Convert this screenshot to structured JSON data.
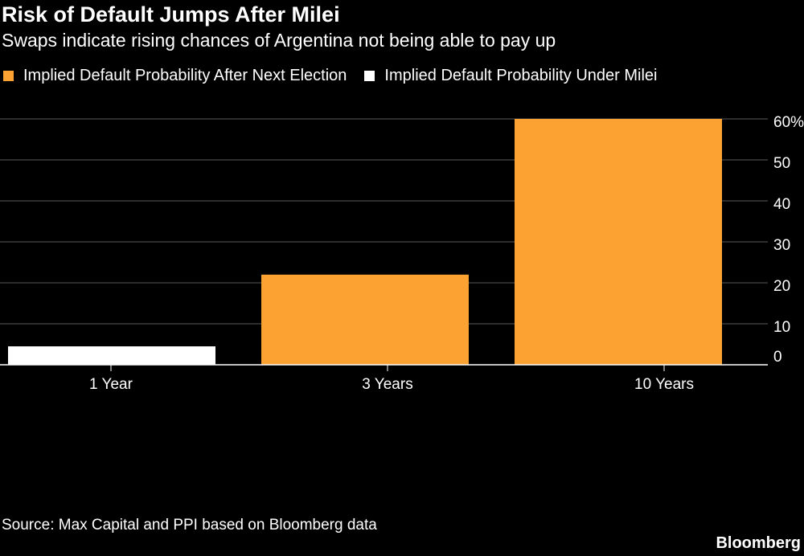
{
  "chart_data": {
    "type": "bar",
    "title": "Risk of Default Jumps After Milei",
    "subtitle": "Swaps indicate rising chances of Argentina not being able to pay up",
    "categories": [
      "1 Year",
      "3 Years",
      "10 Years"
    ],
    "series": [
      {
        "name": "Implied Default Probability After Next Election",
        "color": "#fca232",
        "values": [
          null,
          22,
          60
        ]
      },
      {
        "name": "Implied Default Probability Under Milei",
        "color": "#ffffff",
        "values": [
          4.5,
          null,
          null
        ]
      }
    ],
    "ylim": [
      0,
      60
    ],
    "yticks": [
      0,
      10,
      20,
      30,
      40,
      50,
      60
    ],
    "ytick_labels": [
      "0",
      "10",
      "20",
      "30",
      "40",
      "50",
      "60%"
    ],
    "y_axis_position": "right",
    "grid": true,
    "legend_position": "top-left",
    "source": "Source: Max Capital and PPI based on Bloomberg data",
    "brand": "Bloomberg"
  }
}
